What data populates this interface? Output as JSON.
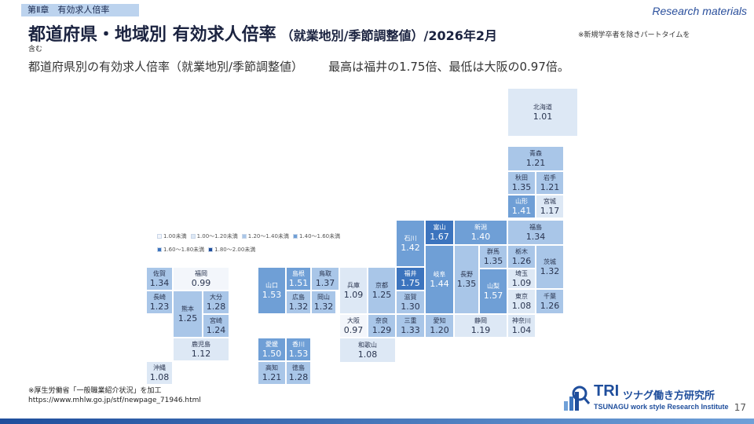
{
  "chapter_tag": "第Ⅱ章　有効求人倍率",
  "top_right_label": "Research materials",
  "title": "都道府県・地域別 有効求人倍率",
  "title_sub": "（就業地別/季節調整値）/2026年2月",
  "title_note_1": "※新規学卒者を除きパートタイムを",
  "title_note_2": "含む",
  "subtitle_left": "都道府県別の有効求人倍率（就業地別/季節調整値）",
  "subtitle_right": "最高は福井の1.75倍、最低は大阪の0.97倍。",
  "legend": [
    {
      "label": "1.00未満",
      "color": "#f3f6fb"
    },
    {
      "label": "1.00〜1.20未満",
      "color": "#dde8f5"
    },
    {
      "label": "1.20〜1.40未満",
      "color": "#a9c6e8"
    },
    {
      "label": "1.40〜1.60未満",
      "color": "#6f9fd6"
    },
    {
      "label": "1.60〜1.80未満",
      "color": "#3c74be"
    },
    {
      "label": "1.80〜2.00未満",
      "color": "#1f4e9c"
    }
  ],
  "chart_data": {
    "type": "table",
    "title": "都道府県・地域別 有効求人倍率",
    "unit": "倍",
    "prefectures": [
      {
        "name": "北海道",
        "value": 1.01
      },
      {
        "name": "青森",
        "value": 1.21
      },
      {
        "name": "秋田",
        "value": 1.35
      },
      {
        "name": "岩手",
        "value": 1.21
      },
      {
        "name": "山形",
        "value": 1.41
      },
      {
        "name": "宮城",
        "value": 1.17
      },
      {
        "name": "福島",
        "value": 1.34
      },
      {
        "name": "新潟",
        "value": 1.4
      },
      {
        "name": "富山",
        "value": 1.67
      },
      {
        "name": "石川",
        "value": 1.42
      },
      {
        "name": "福井",
        "value": 1.75
      },
      {
        "name": "群馬",
        "value": 1.35
      },
      {
        "name": "栃木",
        "value": 1.26
      },
      {
        "name": "茨城",
        "value": 1.32
      },
      {
        "name": "埼玉",
        "value": 1.09
      },
      {
        "name": "長野",
        "value": 1.35
      },
      {
        "name": "山梨",
        "value": 1.57
      },
      {
        "name": "東京",
        "value": 1.08
      },
      {
        "name": "千葉",
        "value": 1.26
      },
      {
        "name": "神奈川",
        "value": 1.04
      },
      {
        "name": "静岡",
        "value": 1.19
      },
      {
        "name": "岐阜",
        "value": 1.44
      },
      {
        "name": "愛知",
        "value": 1.2
      },
      {
        "name": "滋賀",
        "value": 1.3
      },
      {
        "name": "三重",
        "value": 1.33
      },
      {
        "name": "京都",
        "value": 1.25
      },
      {
        "name": "兵庫",
        "value": 1.09
      },
      {
        "name": "大阪",
        "value": 0.97
      },
      {
        "name": "奈良",
        "value": 1.29
      },
      {
        "name": "和歌山",
        "value": 1.08
      },
      {
        "name": "鳥取",
        "value": 1.37
      },
      {
        "name": "島根",
        "value": 1.51
      },
      {
        "name": "岡山",
        "value": 1.32
      },
      {
        "name": "広島",
        "value": 1.32
      },
      {
        "name": "山口",
        "value": 1.53
      },
      {
        "name": "香川",
        "value": 1.53
      },
      {
        "name": "愛媛",
        "value": 1.5
      },
      {
        "name": "徳島",
        "value": 1.28
      },
      {
        "name": "高知",
        "value": 1.21
      },
      {
        "name": "福岡",
        "value": 0.99
      },
      {
        "name": "佐賀",
        "value": 1.34
      },
      {
        "name": "長崎",
        "value": 1.23
      },
      {
        "name": "熊本",
        "value": 1.25
      },
      {
        "name": "大分",
        "value": 1.28
      },
      {
        "name": "宮崎",
        "value": 1.24
      },
      {
        "name": "鹿児島",
        "value": 1.12
      },
      {
        "name": "沖縄",
        "value": 1.08
      }
    ]
  },
  "footnote_1": "※厚生労働省「一般職業紹介状況」を加工",
  "footnote_2": "https://www.mhlw.go.jp/stf/newpage_71946.html",
  "logo_big": "TRI",
  "logo_jp": "ツナグ働き方研究所",
  "logo_en": "TSUNAGU work style Research Institute",
  "page_number": "17"
}
